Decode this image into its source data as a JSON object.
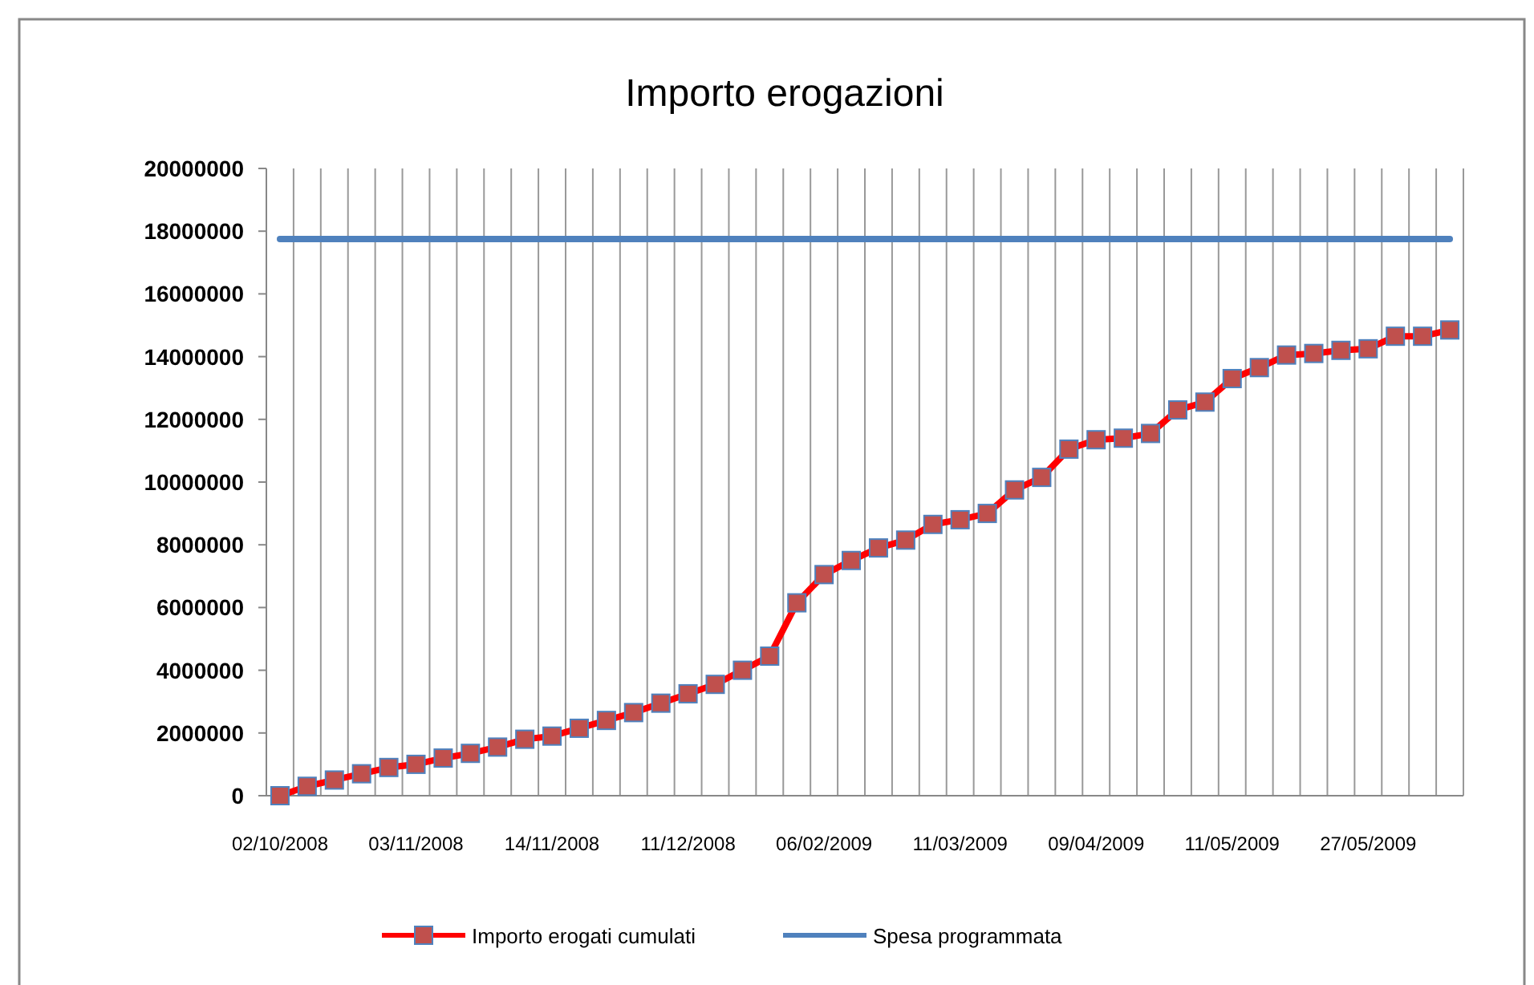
{
  "chart_data": {
    "type": "line",
    "title": "Importo erogazioni",
    "categories": [
      "02/10/2008",
      null,
      null,
      null,
      null,
      "03/11/2008",
      null,
      null,
      null,
      null,
      "14/11/2008",
      null,
      null,
      null,
      null,
      "11/12/2008",
      null,
      null,
      null,
      null,
      "06/02/2009",
      null,
      null,
      null,
      null,
      "11/03/2009",
      null,
      null,
      null,
      null,
      "09/04/2009",
      null,
      null,
      null,
      null,
      "11/05/2009",
      null,
      null,
      null,
      null,
      "27/05/2009",
      null,
      null,
      null
    ],
    "series": [
      {
        "name": "Importo erogati cumulati",
        "color": "#ff0000",
        "marker": "square",
        "values": [
          0,
          300000,
          500000,
          700000,
          900000,
          1000000,
          1200000,
          1350000,
          1550000,
          1800000,
          1900000,
          2150000,
          2400000,
          2650000,
          2950000,
          3250000,
          3550000,
          4000000,
          4450000,
          6150000,
          7050000,
          7500000,
          7900000,
          8150000,
          8650000,
          8800000,
          9000000,
          9750000,
          10150000,
          11050000,
          11350000,
          11400000,
          11550000,
          12300000,
          12550000,
          13300000,
          13650000,
          14050000,
          14100000,
          14200000,
          14250000,
          14650000,
          14650000,
          14850000
        ]
      },
      {
        "name": "Spesa programmata",
        "color": "#4f81bd",
        "marker": "none",
        "values": [
          17750000,
          17750000,
          17750000,
          17750000,
          17750000,
          17750000,
          17750000,
          17750000,
          17750000,
          17750000,
          17750000,
          17750000,
          17750000,
          17750000,
          17750000,
          17750000,
          17750000,
          17750000,
          17750000,
          17750000,
          17750000,
          17750000,
          17750000,
          17750000,
          17750000,
          17750000,
          17750000,
          17750000,
          17750000,
          17750000,
          17750000,
          17750000,
          17750000,
          17750000,
          17750000,
          17750000,
          17750000,
          17750000,
          17750000,
          17750000,
          17750000,
          17750000,
          17750000,
          17750000
        ]
      }
    ],
    "ylim": [
      0,
      20000000
    ],
    "yticks": [
      0,
      2000000,
      4000000,
      6000000,
      8000000,
      10000000,
      12000000,
      14000000,
      16000000,
      18000000,
      20000000
    ],
    "grid": "x",
    "legend": "bottom"
  }
}
